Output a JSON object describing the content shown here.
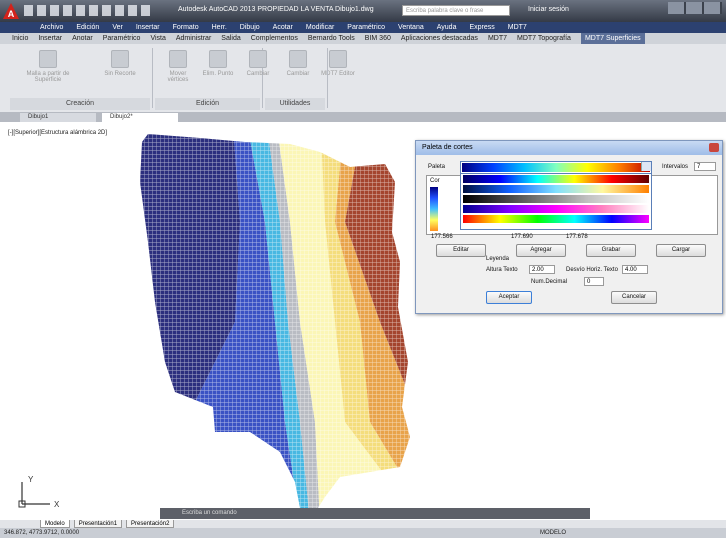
{
  "window": {
    "title": "Autodesk AutoCAD 2013  PROPIEDAD LA VENTA   Dibujo1.dwg",
    "search_placeholder": "Escriba palabra clave o frase",
    "user": "Iniciar sesión"
  },
  "menu": [
    "Archivo",
    "Edición",
    "Ver",
    "Insertar",
    "Formato",
    "Herr.",
    "Dibujo",
    "Acotar",
    "Modificar",
    "Paramétrico",
    "Ventana",
    "Ayuda",
    "Express",
    "MDT7"
  ],
  "ribbon": {
    "tabs": [
      "Inicio",
      "Insertar",
      "Anotar",
      "Paramétrico",
      "Vista",
      "Administrar",
      "Salida",
      "Complementos",
      "Bernardo Tools",
      "BIM 360",
      "Aplicaciones destacadas",
      "MDT7",
      "MDT7 Topografía",
      "MDT7 Superficies"
    ],
    "panels": [
      {
        "label": "Creación",
        "tools": [
          "Malla a partir de Superficie",
          "Sin Recorte"
        ]
      },
      {
        "label": "Edición",
        "tools": [
          "Mover vértices",
          "Elim. Punto",
          "Cambiar",
          "Cambiar",
          "MDT7 Editor"
        ]
      },
      {
        "label": "Utilidades"
      }
    ]
  },
  "file_tabs": [
    "Dibujo1",
    "Dibujo2*"
  ],
  "viewport_label": "[-][Superior][Estructura alámbrica 2D]",
  "dialog": {
    "title": "Paleta de cortes",
    "palette_label": "Paleta",
    "intervals_label": "Intervalos",
    "intervals_value": "7",
    "list_header": "Cor",
    "scale_labels": [
      "177.566",
      "177.690",
      "177.678"
    ],
    "buttons": [
      "Editar",
      "Agregar",
      "Grabar",
      "Cargar"
    ],
    "legend": {
      "title": "Leyenda",
      "text_height_label": "Altura Texto",
      "text_height": "2.00",
      "offset_label": "Desvío Horiz. Texto",
      "offset": "4.00",
      "decimals_label": "Num.Decimal",
      "decimals": "0"
    },
    "ok": "Aceptar",
    "cancel": "Cancelar"
  },
  "ucs": {
    "x": "X",
    "y": "Y"
  },
  "command_line": "Escriba un comando",
  "layout_tabs": [
    "Modelo",
    "Presentación1",
    "Presentación2"
  ],
  "status": {
    "coordinates": "346.872, 4773.9712, 0.0000",
    "mode": "MODELO"
  }
}
